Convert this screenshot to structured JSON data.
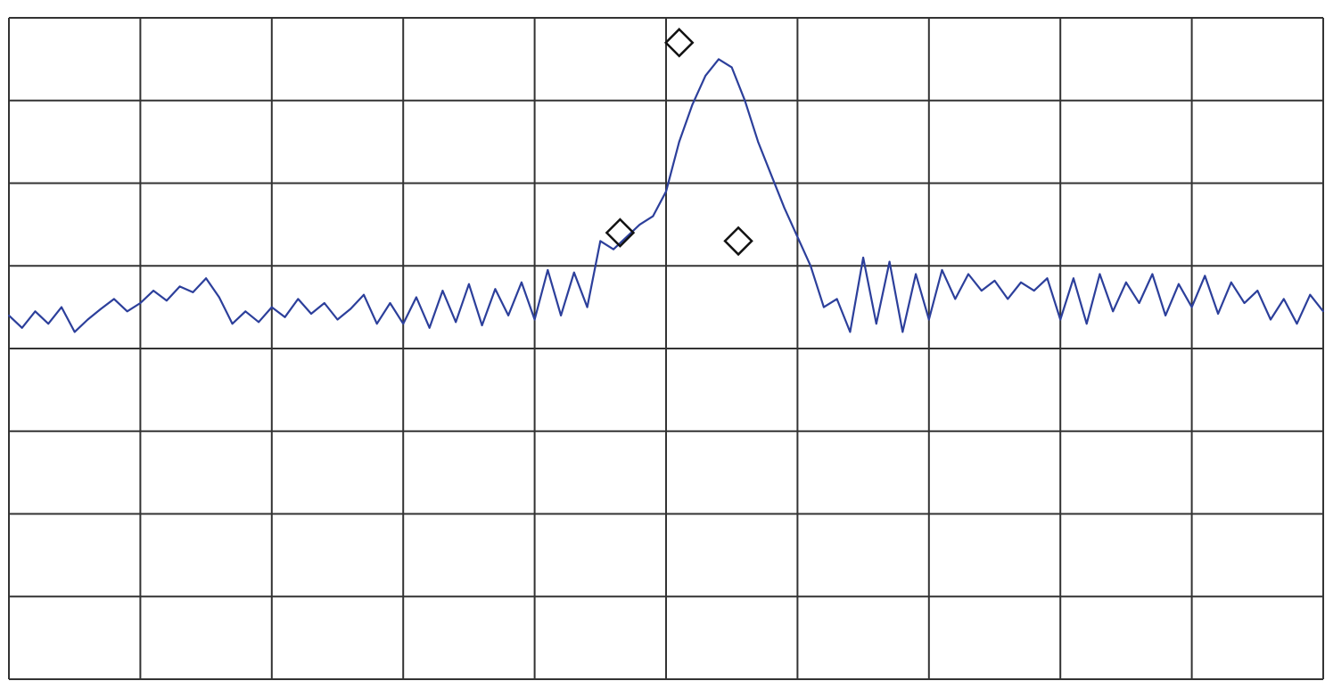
{
  "chart_data": {
    "type": "line",
    "title": "",
    "xlabel": "",
    "ylabel": "",
    "xlim": [
      0,
      10
    ],
    "ylim": [
      0,
      8
    ],
    "grid": true,
    "grid_divisions": {
      "x": 10,
      "y": 8
    },
    "series": [
      {
        "color": "#2c3f9b",
        "x": [
          0,
          0.1,
          0.2,
          0.3,
          0.4,
          0.5,
          0.6,
          0.7,
          0.8,
          0.9,
          1.0,
          1.1,
          1.2,
          1.3,
          1.4,
          1.5,
          1.6,
          1.7,
          1.8,
          1.9,
          2.0,
          2.1,
          2.2,
          2.3,
          2.4,
          2.5,
          2.6,
          2.7,
          2.8,
          2.9,
          3.0,
          3.1,
          3.2,
          3.3,
          3.4,
          3.5,
          3.6,
          3.7,
          3.8,
          3.9,
          4.0,
          4.1,
          4.2,
          4.3,
          4.4,
          4.5,
          4.6,
          4.7,
          4.8,
          4.9,
          5.0,
          5.1,
          5.2,
          5.3,
          5.4,
          5.5,
          5.6,
          5.7,
          5.8,
          5.9,
          6.0,
          6.1,
          6.2,
          6.3,
          6.4,
          6.5,
          6.6,
          6.7,
          6.8,
          6.9,
          7.0,
          7.1,
          7.2,
          7.3,
          7.4,
          7.5,
          7.6,
          7.7,
          7.8,
          7.9,
          8.0,
          8.1,
          8.2,
          8.3,
          8.4,
          8.5,
          8.6,
          8.7,
          8.8,
          8.9,
          9.0,
          9.1,
          9.2,
          9.3,
          9.4,
          9.5,
          9.6,
          9.7,
          9.8,
          9.9,
          10.0
        ],
        "y": [
          4.4,
          4.25,
          4.45,
          4.3,
          4.5,
          4.2,
          4.35,
          4.48,
          4.6,
          4.45,
          4.55,
          4.7,
          4.58,
          4.75,
          4.68,
          4.85,
          4.62,
          4.3,
          4.45,
          4.32,
          4.5,
          4.38,
          4.6,
          4.42,
          4.55,
          4.35,
          4.48,
          4.65,
          4.3,
          4.55,
          4.3,
          4.62,
          4.25,
          4.7,
          4.32,
          4.78,
          4.28,
          4.72,
          4.4,
          4.8,
          4.35,
          4.95,
          4.4,
          4.92,
          4.5,
          5.3,
          5.2,
          5.35,
          5.5,
          5.6,
          5.9,
          6.5,
          6.95,
          7.3,
          7.5,
          7.4,
          7.0,
          6.5,
          6.1,
          5.7,
          5.35,
          5.0,
          4.5,
          4.6,
          4.2,
          5.1,
          4.3,
          5.05,
          4.2,
          4.9,
          4.35,
          4.95,
          4.6,
          4.9,
          4.7,
          4.82,
          4.6,
          4.8,
          4.7,
          4.85,
          4.35,
          4.85,
          4.3,
          4.9,
          4.45,
          4.8,
          4.55,
          4.9,
          4.4,
          4.78,
          4.5,
          4.88,
          4.42,
          4.8,
          4.55,
          4.7,
          4.35,
          4.6,
          4.3,
          4.65,
          4.45
        ]
      }
    ],
    "markers": [
      {
        "x": 4.65,
        "y": 5.4
      },
      {
        "x": 5.1,
        "y": 7.7
      },
      {
        "x": 5.55,
        "y": 5.3
      }
    ]
  }
}
